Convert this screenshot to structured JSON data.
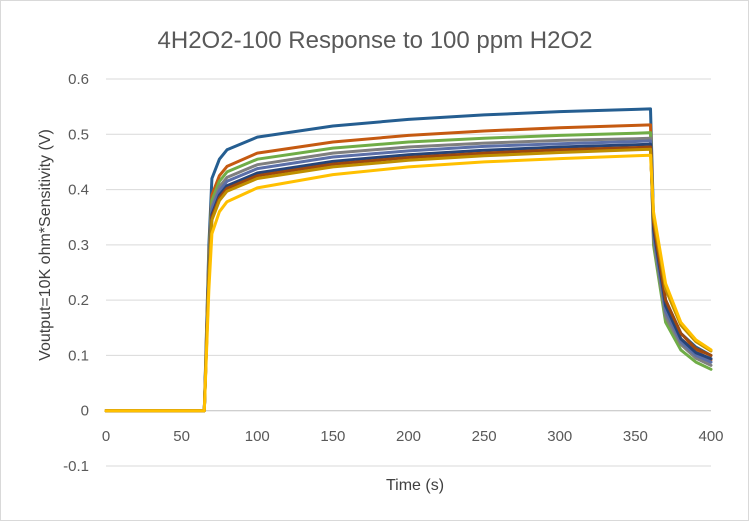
{
  "chart_data": {
    "type": "line",
    "title": "4H2O2-100 Response to 100 ppm H2O2",
    "xlabel": "Time (s)",
    "ylabel": "Voutput=10K ohm*Sensitivity (V)",
    "xlim": [
      0,
      400
    ],
    "ylim": [
      -0.1,
      0.6
    ],
    "x_ticks": [
      0,
      50,
      100,
      150,
      200,
      250,
      300,
      350,
      400
    ],
    "y_ticks": [
      -0.1,
      0,
      0.1,
      0.2,
      0.3,
      0.4,
      0.5,
      0.6
    ],
    "x_tick_labels": [
      "0",
      "50",
      "100",
      "150",
      "200",
      "250",
      "300",
      "350",
      "400"
    ],
    "y_tick_labels": [
      "-0.1",
      "0",
      "0.1",
      "0.2",
      "0.3",
      "0.4",
      "0.5",
      "0.6"
    ],
    "grid": "horizontal",
    "legend": "none",
    "x": [
      0,
      60,
      65,
      68,
      70,
      75,
      80,
      100,
      150,
      200,
      250,
      300,
      350,
      360,
      362,
      370,
      380,
      390,
      400
    ],
    "series": [
      {
        "color": "#255e91",
        "values": [
          0,
          0,
          0,
          0.3,
          0.42,
          0.455,
          0.472,
          0.495,
          0.515,
          0.527,
          0.535,
          0.541,
          0.545,
          0.546,
          0.35,
          0.2,
          0.14,
          0.115,
          0.1
        ]
      },
      {
        "color": "#c55a11",
        "values": [
          0,
          0,
          0,
          0.28,
          0.39,
          0.425,
          0.442,
          0.466,
          0.486,
          0.498,
          0.506,
          0.512,
          0.516,
          0.517,
          0.33,
          0.19,
          0.13,
          0.108,
          0.092
        ]
      },
      {
        "color": "#70ad47",
        "values": [
          0,
          0,
          0,
          0.27,
          0.38,
          0.415,
          0.432,
          0.455,
          0.475,
          0.486,
          0.493,
          0.498,
          0.502,
          0.503,
          0.3,
          0.16,
          0.11,
          0.088,
          0.075
        ]
      },
      {
        "color": "#7f7f7f",
        "values": [
          0,
          0,
          0,
          0.26,
          0.37,
          0.405,
          0.422,
          0.445,
          0.466,
          0.477,
          0.484,
          0.489,
          0.492,
          0.493,
          0.31,
          0.17,
          0.12,
          0.095,
          0.082
        ]
      },
      {
        "color": "#5b6fa8",
        "values": [
          0,
          0,
          0,
          0.255,
          0.365,
          0.398,
          0.415,
          0.438,
          0.459,
          0.47,
          0.478,
          0.483,
          0.487,
          0.488,
          0.32,
          0.18,
          0.125,
          0.1,
          0.088
        ]
      },
      {
        "color": "#264478",
        "values": [
          0,
          0,
          0,
          0.25,
          0.355,
          0.39,
          0.407,
          0.43,
          0.451,
          0.463,
          0.471,
          0.477,
          0.481,
          0.482,
          0.33,
          0.19,
          0.13,
          0.105,
          0.094
        ]
      },
      {
        "color": "#9e480e",
        "values": [
          0,
          0,
          0,
          0.245,
          0.35,
          0.385,
          0.402,
          0.425,
          0.446,
          0.458,
          0.466,
          0.472,
          0.476,
          0.477,
          0.34,
          0.2,
          0.14,
          0.112,
          0.1
        ]
      },
      {
        "color": "#bf8f00",
        "values": [
          0,
          0,
          0,
          0.24,
          0.345,
          0.38,
          0.397,
          0.42,
          0.441,
          0.453,
          0.461,
          0.467,
          0.472,
          0.473,
          0.35,
          0.22,
          0.155,
          0.125,
          0.108
        ]
      },
      {
        "color": "#ffc000",
        "values": [
          0,
          0,
          0,
          0.22,
          0.32,
          0.36,
          0.378,
          0.403,
          0.427,
          0.441,
          0.45,
          0.456,
          0.461,
          0.462,
          0.36,
          0.23,
          0.16,
          0.128,
          0.11
        ]
      }
    ]
  }
}
